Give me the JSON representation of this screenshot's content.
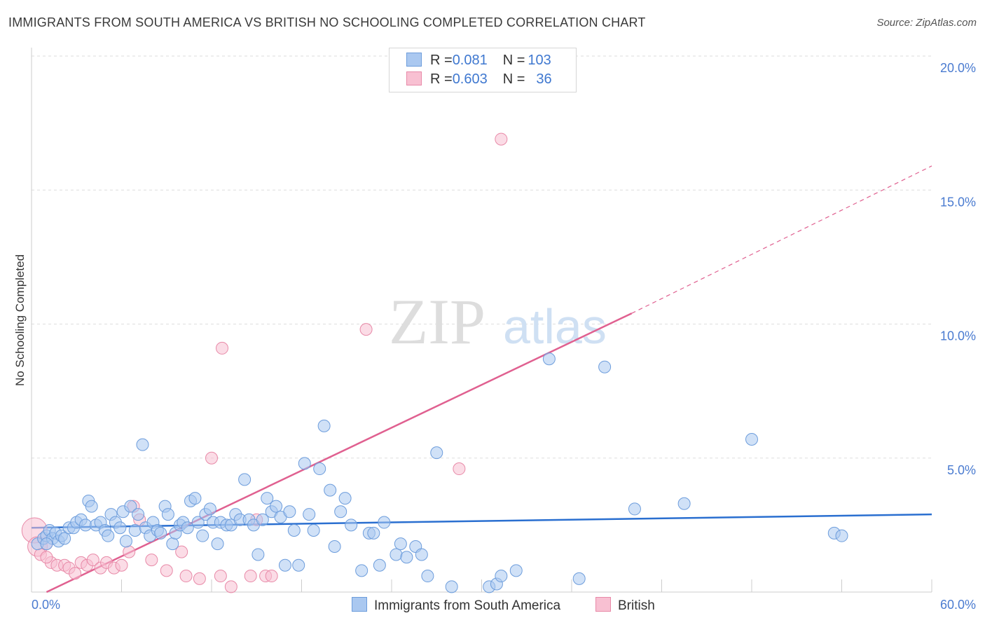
{
  "title": "IMMIGRANTS FROM SOUTH AMERICA VS BRITISH NO SCHOOLING COMPLETED CORRELATION CHART",
  "source": "Source: ZipAtlas.com",
  "watermark": {
    "zip": "ZIP",
    "atlas": "atlas"
  },
  "legend_top": {
    "series1": {
      "r_label": "R = ",
      "r_value": "0.081",
      "n_label": "N = ",
      "n_value": "103"
    },
    "series2": {
      "r_label": "R = ",
      "r_value": "0.603",
      "n_label": "N = ",
      "n_value": "36"
    }
  },
  "colors": {
    "blue_fill": "#aac8f0",
    "blue_stroke": "#6d9ddc",
    "blue_line": "#2a6fd0",
    "pink_fill": "#f8c0d2",
    "pink_stroke": "#e88aa8",
    "pink_line": "#e06090",
    "grid": "#dddddd",
    "tick": "#4a7bd0"
  },
  "chart_data": {
    "type": "scatter",
    "title": "IMMIGRANTS FROM SOUTH AMERICA VS BRITISH NO SCHOOLING COMPLETED CORRELATION CHART",
    "xlabel": "",
    "ylabel": "No Schooling Completed",
    "xlim": [
      0,
      60
    ],
    "ylim": [
      0,
      20
    ],
    "x_tick_labels": [
      "0.0%",
      "60.0%"
    ],
    "y_ticks": [
      5,
      10,
      15,
      20
    ],
    "y_tick_labels": [
      "5.0%",
      "10.0%",
      "15.0%",
      "20.0%"
    ],
    "grid": true,
    "series": [
      {
        "name": "Immigrants from South America",
        "color": "#aac8f0",
        "r": 0.081,
        "n": 103,
        "trend": {
          "x0": 0,
          "y0": 2.4,
          "x1": 60,
          "y1": 2.9
        },
        "points": [
          [
            0.4,
            1.8
          ],
          [
            0.8,
            2.0
          ],
          [
            1.0,
            2.1
          ],
          [
            1.2,
            2.3
          ],
          [
            1.4,
            2.0
          ],
          [
            1.6,
            2.2
          ],
          [
            1.8,
            1.9
          ],
          [
            2.0,
            2.1
          ],
          [
            2.2,
            2.0
          ],
          [
            2.5,
            2.4
          ],
          [
            2.8,
            2.4
          ],
          [
            3.0,
            2.6
          ],
          [
            3.3,
            2.7
          ],
          [
            3.6,
            2.5
          ],
          [
            3.8,
            3.4
          ],
          [
            4.0,
            3.2
          ],
          [
            4.3,
            2.5
          ],
          [
            4.6,
            2.6
          ],
          [
            4.9,
            2.3
          ],
          [
            5.1,
            2.1
          ],
          [
            5.3,
            2.9
          ],
          [
            5.6,
            2.6
          ],
          [
            5.9,
            2.4
          ],
          [
            6.1,
            3.0
          ],
          [
            6.3,
            1.9
          ],
          [
            6.6,
            3.2
          ],
          [
            6.9,
            2.3
          ],
          [
            7.1,
            2.9
          ],
          [
            7.4,
            5.5
          ],
          [
            7.6,
            2.4
          ],
          [
            7.9,
            2.1
          ],
          [
            8.1,
            2.6
          ],
          [
            8.4,
            2.3
          ],
          [
            8.6,
            2.2
          ],
          [
            8.9,
            3.2
          ],
          [
            9.1,
            2.9
          ],
          [
            9.4,
            1.8
          ],
          [
            9.6,
            2.2
          ],
          [
            9.9,
            2.5
          ],
          [
            10.1,
            2.6
          ],
          [
            10.4,
            2.4
          ],
          [
            10.6,
            3.4
          ],
          [
            10.9,
            3.5
          ],
          [
            11.1,
            2.6
          ],
          [
            11.4,
            2.1
          ],
          [
            11.6,
            2.9
          ],
          [
            11.9,
            3.1
          ],
          [
            12.1,
            2.6
          ],
          [
            12.4,
            1.8
          ],
          [
            12.6,
            2.6
          ],
          [
            13.0,
            2.5
          ],
          [
            13.3,
            2.5
          ],
          [
            13.6,
            2.9
          ],
          [
            13.9,
            2.7
          ],
          [
            14.2,
            4.2
          ],
          [
            14.5,
            2.7
          ],
          [
            14.8,
            2.5
          ],
          [
            15.1,
            1.4
          ],
          [
            15.4,
            2.7
          ],
          [
            15.7,
            3.5
          ],
          [
            16.0,
            3.0
          ],
          [
            16.3,
            3.2
          ],
          [
            16.6,
            2.8
          ],
          [
            16.9,
            1.0
          ],
          [
            17.2,
            3.0
          ],
          [
            17.5,
            2.3
          ],
          [
            17.8,
            1.0
          ],
          [
            18.2,
            4.8
          ],
          [
            18.5,
            2.9
          ],
          [
            18.8,
            2.3
          ],
          [
            19.2,
            4.6
          ],
          [
            19.5,
            6.2
          ],
          [
            19.9,
            3.8
          ],
          [
            20.2,
            1.7
          ],
          [
            20.6,
            3.0
          ],
          [
            20.9,
            3.5
          ],
          [
            21.3,
            2.5
          ],
          [
            22.0,
            0.8
          ],
          [
            22.5,
            2.2
          ],
          [
            22.8,
            2.2
          ],
          [
            23.2,
            1.0
          ],
          [
            23.5,
            2.6
          ],
          [
            24.3,
            1.4
          ],
          [
            24.6,
            1.8
          ],
          [
            25.0,
            1.3
          ],
          [
            25.6,
            1.7
          ],
          [
            26.0,
            1.4
          ],
          [
            26.4,
            0.6
          ],
          [
            27.0,
            5.2
          ],
          [
            28.0,
            0.2
          ],
          [
            30.5,
            0.2
          ],
          [
            31.0,
            0.3
          ],
          [
            31.3,
            0.6
          ],
          [
            32.3,
            0.8
          ],
          [
            34.5,
            8.7
          ],
          [
            36.5,
            0.5
          ],
          [
            38.2,
            8.4
          ],
          [
            40.2,
            3.1
          ],
          [
            43.5,
            3.3
          ],
          [
            48.0,
            5.7
          ],
          [
            53.5,
            2.2
          ],
          [
            54.0,
            2.1
          ],
          [
            1.0,
            1.8
          ]
        ]
      },
      {
        "name": "British",
        "color": "#f8c0d2",
        "r": 0.603,
        "n": 36,
        "trend": {
          "x0": 1.0,
          "y0": 0.0,
          "x1": 40.0,
          "y1": 10.4,
          "dash_x1": 60.0,
          "dash_y1": 15.9
        },
        "points": [
          [
            0.2,
            2.3
          ],
          [
            0.4,
            1.7
          ],
          [
            0.6,
            1.4
          ],
          [
            1.0,
            1.8
          ],
          [
            1.3,
            1.1
          ],
          [
            1.7,
            1.0
          ],
          [
            2.2,
            1.0
          ],
          [
            2.5,
            0.9
          ],
          [
            2.9,
            0.7
          ],
          [
            3.3,
            1.1
          ],
          [
            3.7,
            1.0
          ],
          [
            4.1,
            1.2
          ],
          [
            4.6,
            0.9
          ],
          [
            5.0,
            1.1
          ],
          [
            5.5,
            0.9
          ],
          [
            6.0,
            1.0
          ],
          [
            6.5,
            1.5
          ],
          [
            6.8,
            3.2
          ],
          [
            7.2,
            2.7
          ],
          [
            8.0,
            1.2
          ],
          [
            9.0,
            0.8
          ],
          [
            10.0,
            1.5
          ],
          [
            10.3,
            0.6
          ],
          [
            11.2,
            0.5
          ],
          [
            12.0,
            5.0
          ],
          [
            12.6,
            0.6
          ],
          [
            13.3,
            0.2
          ],
          [
            14.6,
            0.6
          ],
          [
            15.0,
            2.7
          ],
          [
            15.6,
            0.6
          ],
          [
            12.7,
            9.1
          ],
          [
            22.3,
            9.8
          ],
          [
            28.5,
            4.6
          ],
          [
            31.3,
            16.9
          ],
          [
            1.0,
            1.3
          ],
          [
            16.0,
            0.6
          ]
        ]
      }
    ]
  },
  "bottom_legend": {
    "series1": "Immigrants from South America",
    "series2": "British"
  }
}
